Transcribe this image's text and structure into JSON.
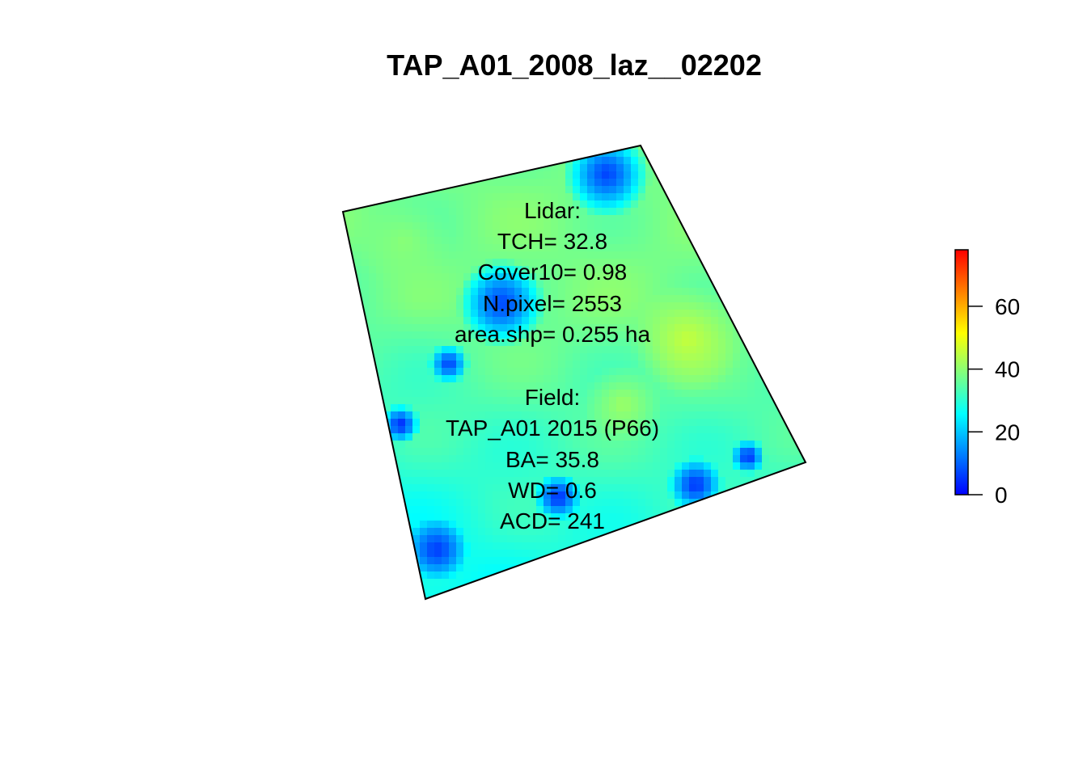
{
  "title": "TAP_A01_2008_laz__02202",
  "lidar_block": {
    "heading": "Lidar:",
    "tch": "TCH= 32.8",
    "cover10": "Cover10= 0.98",
    "npixel": "N.pixel= 2553",
    "area": "area.shp= 0.255 ha"
  },
  "field_block": {
    "heading": "Field:",
    "plot": "TAP_A01 2015 (P66)",
    "ba": "BA= 35.8",
    "wd": "WD= 0.6",
    "acd": "ACD= 241"
  },
  "chart_data": {
    "type": "heatmap",
    "title": "TAP_A01_2008_laz__02202",
    "colorbar": {
      "min": 0,
      "max": 78,
      "ticks": [
        0,
        20,
        40,
        60
      ],
      "palette": [
        "#0000ff",
        "#00ffff",
        "#ffff00",
        "#ff0000"
      ]
    },
    "tick_labels": [
      "0",
      "20",
      "40",
      "60"
    ],
    "value_range_in_plot": [
      0,
      46
    ],
    "dominant_values": {
      "upper_area": 38,
      "left_lower_area": 22
    }
  }
}
